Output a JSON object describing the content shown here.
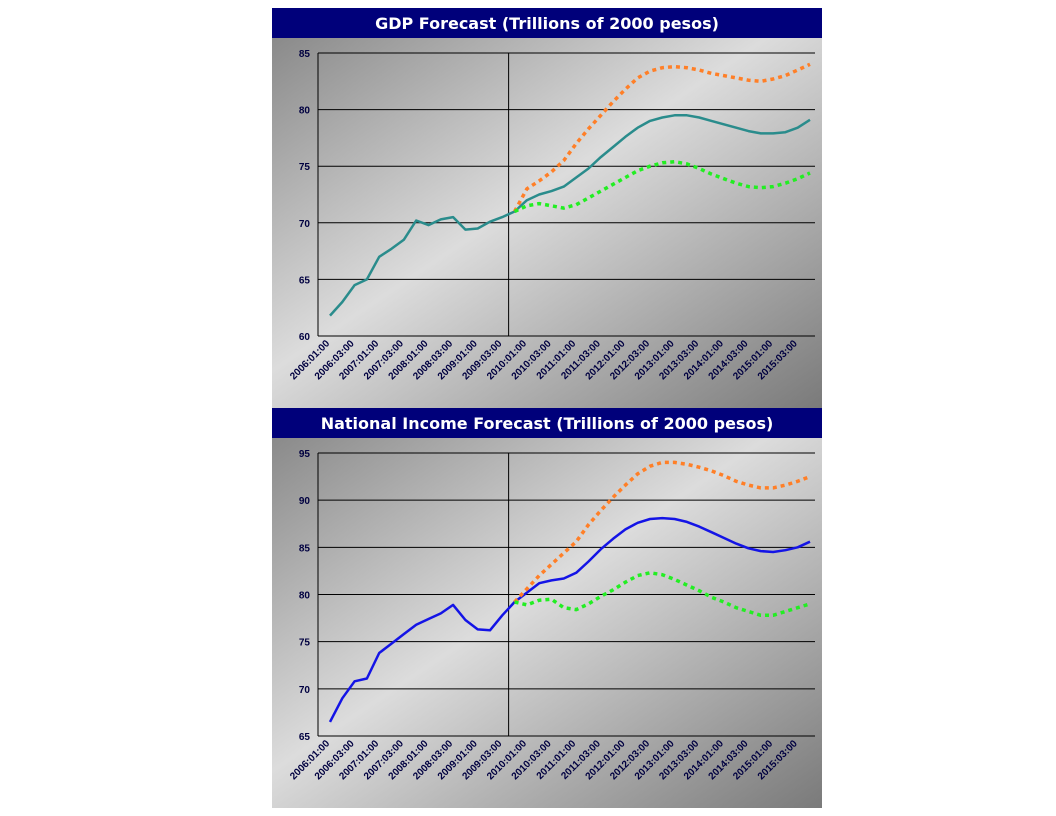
{
  "chart_data": [
    {
      "type": "line",
      "title": "GDP Forecast (Trillions of 2000 pesos)",
      "categories": [
        "2006:01:00",
        null,
        "2006:03:00",
        null,
        "2007:01:00",
        null,
        "2007:03:00",
        null,
        "2008:01:00",
        null,
        "2008:03:00",
        null,
        "2009:01:00",
        null,
        "2009:03:00",
        null,
        "2010:01:00",
        null,
        "2010:03:00",
        null,
        "2011:01:00",
        null,
        "2011:03:00",
        null,
        "2012:01:00",
        null,
        "2012:03:00",
        null,
        "2013:01:00",
        null,
        "2013:03:00",
        null,
        "2014:01:00",
        null,
        "2014:03:00",
        null,
        "2015:01:00",
        null,
        "2015:03:00",
        null
      ],
      "ylim": [
        60,
        85
      ],
      "yticks": [
        60,
        65,
        70,
        75,
        80,
        85
      ],
      "grid": true,
      "series": [
        {
          "color": "#2a8c8c",
          "dashed": false,
          "values": [
            61.8,
            63,
            64.5,
            65,
            67,
            67.7,
            68.5,
            70.2,
            69.8,
            70.3,
            70.5,
            69.4,
            69.5,
            70.1,
            70.5,
            71,
            72,
            72.5,
            72.8,
            73.2,
            74,
            74.8,
            75.8,
            76.7,
            77.6,
            78.4,
            79,
            79.3,
            79.5,
            79.5,
            79.3,
            79,
            78.7,
            78.4,
            78.1,
            77.9,
            77.9,
            78,
            78.4,
            79.1
          ]
        },
        {
          "color": "#ff7f27",
          "dashed": true,
          "values": [
            null,
            null,
            null,
            null,
            null,
            null,
            null,
            null,
            null,
            null,
            null,
            null,
            null,
            null,
            null,
            71,
            73,
            73.7,
            74.5,
            75.5,
            77,
            78.3,
            79.5,
            80.7,
            81.8,
            82.8,
            83.4,
            83.7,
            83.8,
            83.7,
            83.5,
            83.2,
            83,
            82.8,
            82.6,
            82.5,
            82.7,
            83,
            83.5,
            84
          ]
        },
        {
          "color": "#22ee22",
          "dashed": true,
          "values": [
            null,
            null,
            null,
            null,
            null,
            null,
            null,
            null,
            null,
            null,
            null,
            null,
            null,
            null,
            null,
            71,
            71.5,
            71.7,
            71.5,
            71.3,
            71.6,
            72.2,
            72.8,
            73.4,
            74,
            74.6,
            75,
            75.3,
            75.4,
            75.2,
            74.8,
            74.3,
            73.9,
            73.5,
            73.2,
            73.1,
            73.2,
            73.5,
            73.9,
            74.4
          ]
        }
      ]
    },
    {
      "type": "line",
      "title": "National Income Forecast (Trillions of 2000 pesos)",
      "categories": [
        "2006:01:00",
        null,
        "2006:03:00",
        null,
        "2007:01:00",
        null,
        "2007:03:00",
        null,
        "2008:01:00",
        null,
        "2008:03:00",
        null,
        "2009:01:00",
        null,
        "2009:03:00",
        null,
        "2010:01:00",
        null,
        "2010:03:00",
        null,
        "2011:01:00",
        null,
        "2011:03:00",
        null,
        "2012:01:00",
        null,
        "2012:03:00",
        null,
        "2013:01:00",
        null,
        "2013:03:00",
        null,
        "2014:01:00",
        null,
        "2014:03:00",
        null,
        "2015:01:00",
        null,
        "2015:03:00",
        null
      ],
      "ylim": [
        65,
        95
      ],
      "yticks": [
        65,
        70,
        75,
        80,
        85,
        90,
        95
      ],
      "grid": true,
      "series": [
        {
          "color": "#1414e6",
          "dashed": false,
          "values": [
            66.5,
            69,
            70.8,
            71.1,
            73.8,
            74.8,
            75.8,
            76.8,
            77.4,
            78,
            78.9,
            77.3,
            76.3,
            76.2,
            77.8,
            79.2,
            80.2,
            81.2,
            81.5,
            81.7,
            82.3,
            83.5,
            84.8,
            85.9,
            86.9,
            87.6,
            88,
            88.1,
            88,
            87.7,
            87.2,
            86.6,
            86,
            85.4,
            84.9,
            84.6,
            84.5,
            84.7,
            85,
            85.6
          ]
        },
        {
          "color": "#ff7f27",
          "dashed": true,
          "values": [
            null,
            null,
            null,
            null,
            null,
            null,
            null,
            null,
            null,
            null,
            null,
            null,
            null,
            null,
            null,
            79.2,
            80.6,
            82,
            83.2,
            84.4,
            85.6,
            87.4,
            88.9,
            90.3,
            91.6,
            92.8,
            93.6,
            94,
            94,
            93.8,
            93.5,
            93.1,
            92.6,
            92,
            91.6,
            91.3,
            91.3,
            91.6,
            92,
            92.5
          ]
        },
        {
          "color": "#22ee22",
          "dashed": true,
          "values": [
            null,
            null,
            null,
            null,
            null,
            null,
            null,
            null,
            null,
            null,
            null,
            null,
            null,
            null,
            null,
            79.2,
            78.9,
            79.4,
            79.5,
            78.6,
            78.4,
            79,
            79.8,
            80.5,
            81.3,
            82,
            82.3,
            82.1,
            81.6,
            81,
            80.4,
            79.7,
            79.2,
            78.6,
            78.2,
            77.8,
            77.8,
            78.2,
            78.6,
            79
          ]
        }
      ]
    }
  ]
}
